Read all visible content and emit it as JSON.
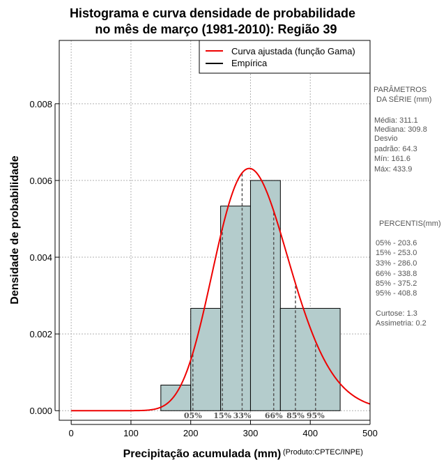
{
  "chart_data": {
    "type": "bar",
    "title_line1": "Histograma e curva densidade de probabilidade",
    "title_line2": "no mês de março (1981-2010): Região 39",
    "xlabel": "Precipitação acumulada (mm)",
    "ylabel": "Densidade de probabilidade",
    "credit": "(Produto:CPTEC/INPE)",
    "xlim": [
      -20,
      500
    ],
    "ylim": [
      -0.00025,
      0.00965
    ],
    "x_ticks": [
      0,
      100,
      200,
      300,
      400,
      500
    ],
    "x_tick_labels": [
      "0",
      "100",
      "200",
      "300",
      "400",
      "500"
    ],
    "y_ticks": [
      0,
      0.002,
      0.004,
      0.006,
      0.008
    ],
    "y_tick_labels": [
      "0.000",
      "0.002",
      "0.004",
      "0.006",
      "0.008"
    ],
    "grid": true,
    "bins": [
      {
        "start": 150,
        "end": 200,
        "density": 0.000667
      },
      {
        "start": 200,
        "end": 250,
        "density": 0.002667
      },
      {
        "start": 250,
        "end": 300,
        "density": 0.005333
      },
      {
        "start": 300,
        "end": 350,
        "density": 0.006
      },
      {
        "start": 350,
        "end": 450,
        "density": 0.002667
      }
    ],
    "gamma_fit": {
      "shape": 23.4,
      "scale": 13.3
    },
    "colors": {
      "bar_fill": "#b4cccc",
      "curve": "#ee0000",
      "grid": "#b0b0b0",
      "percentile_line": "#555555"
    },
    "legend": {
      "position": "top-right",
      "entries": [
        {
          "label": "Curva ajustada (função Gama)",
          "color": "#ee0000"
        },
        {
          "label": "Empírica",
          "color": "#000000"
        }
      ]
    },
    "percentile_markers": [
      {
        "label": "05%",
        "x": 203.6
      },
      {
        "label": "15%",
        "x": 253.0
      },
      {
        "label": "33%",
        "x": 286.0
      },
      {
        "label": "66%",
        "x": 338.8
      },
      {
        "label": "85%",
        "x": 375.2
      },
      {
        "label": "95%",
        "x": 408.8
      }
    ]
  },
  "side_panel": {
    "params_heading_1": "PARÂMETROS",
    "params_heading_2": "DA SÉRIE (mm)",
    "stats": [
      "Média:  311.1",
      "Mediana:  309.8",
      "Desvio",
      "padrão:  64.3",
      "Mín:  161.6",
      "Máx:  433.9"
    ],
    "percentis_heading": "PERCENTIS(mm)",
    "percentis": [
      "05% -  203.6",
      "15% -  253.0",
      "33% -  286.0",
      "66% -  338.8",
      "85% -  375.2",
      "95% -  408.8"
    ],
    "curtose": "Curtose:  1.3",
    "assimetria": "Assimetria:  0.2"
  }
}
